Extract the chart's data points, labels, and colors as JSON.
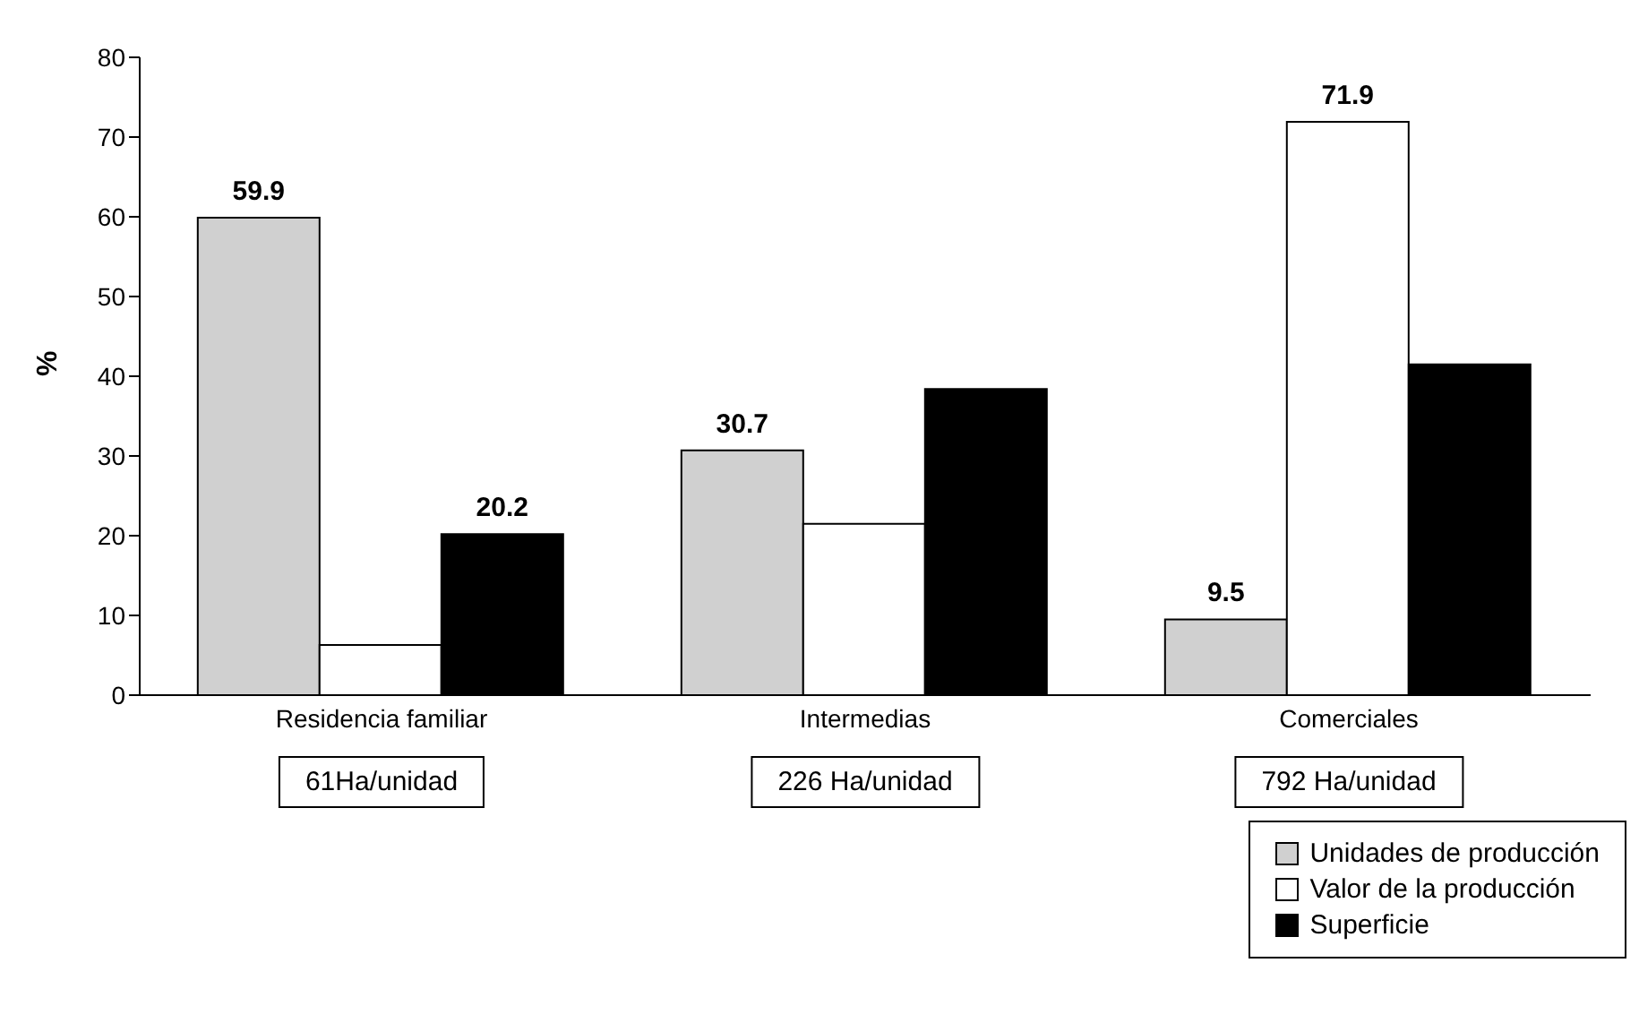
{
  "chart_data": {
    "type": "bar",
    "ylabel": "%",
    "categories": [
      "Residencia familiar",
      "Intermedias",
      "Comerciales"
    ],
    "series": [
      {
        "name": "Unidades de producción",
        "color": "#d0d0d0",
        "values": [
          59.9,
          30.7,
          9.5
        ],
        "value_labels": [
          "59.9",
          "30.7",
          "9.5"
        ]
      },
      {
        "name": "Valor de la producción",
        "color": "#ffffff",
        "values": [
          6.3,
          21.5,
          71.9
        ],
        "value_labels": [
          null,
          null,
          "71.9"
        ]
      },
      {
        "name": "Superficie",
        "color": "#000000",
        "values": [
          20.2,
          38.4,
          41.5
        ],
        "value_labels": [
          "20.2",
          null,
          null
        ]
      }
    ],
    "ylim": [
      0,
      80
    ],
    "yticks": [
      0,
      10,
      20,
      30,
      40,
      50,
      60,
      70,
      80
    ],
    "annotations": [
      "61Ha/unidad",
      "226 Ha/unidad",
      "792 Ha/unidad"
    ],
    "legend": "bottom right",
    "grid": false
  }
}
